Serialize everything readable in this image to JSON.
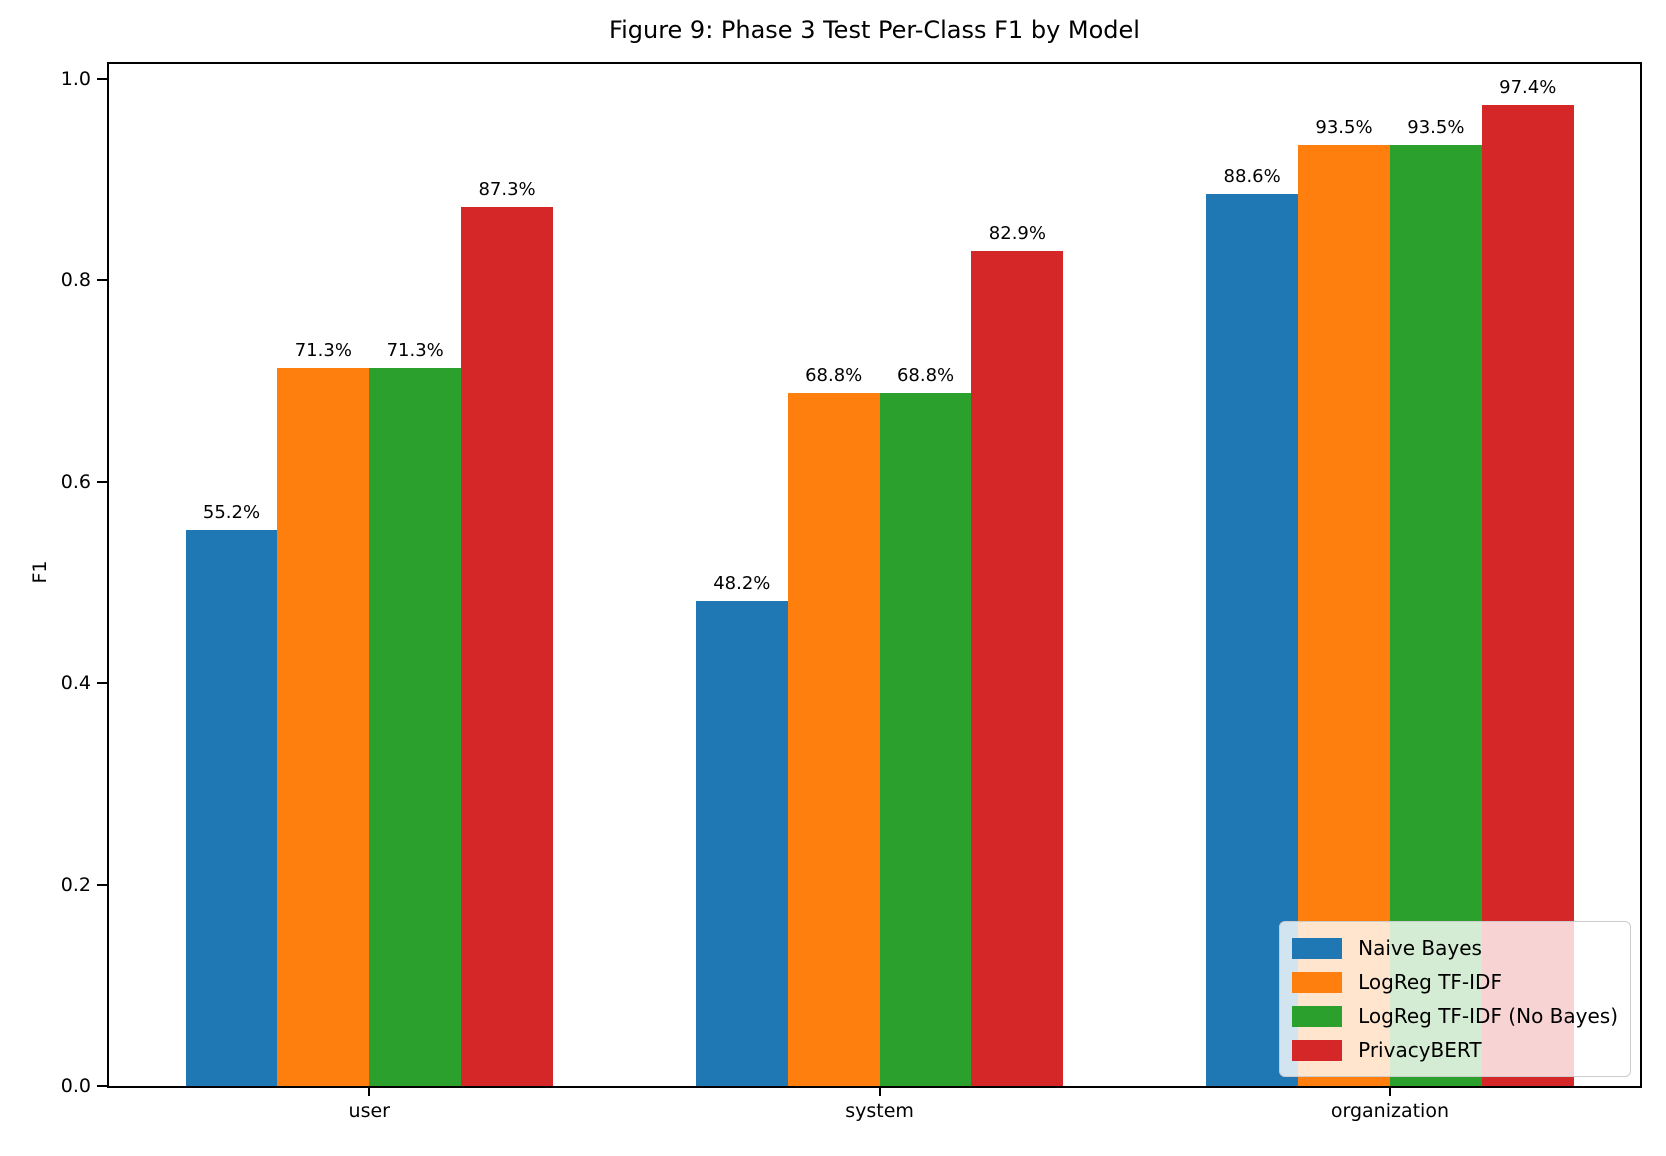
{
  "chart_data": {
    "type": "bar",
    "title": "Figure 9: Phase 3 Test Per-Class F1 by Model",
    "xlabel": "",
    "ylabel": "F1",
    "categories": [
      "user",
      "system",
      "organization"
    ],
    "series": [
      {
        "name": "Naive Bayes",
        "color": "#1f77b4",
        "values": [
          0.552,
          0.482,
          0.886
        ],
        "labels": [
          "55.2%",
          "48.2%",
          "88.6%"
        ]
      },
      {
        "name": "LogReg TF-IDF",
        "color": "#ff7f0e",
        "values": [
          0.713,
          0.688,
          0.935
        ],
        "labels": [
          "71.3%",
          "68.8%",
          "93.5%"
        ]
      },
      {
        "name": "LogReg TF-IDF (No Bayes)",
        "color": "#2ca02c",
        "values": [
          0.713,
          0.688,
          0.935
        ],
        "labels": [
          "71.3%",
          "68.8%",
          "93.5%"
        ]
      },
      {
        "name": "PrivacyBERT",
        "color": "#d62728",
        "values": [
          0.873,
          0.829,
          0.974
        ],
        "labels": [
          "87.3%",
          "82.9%",
          "97.4%"
        ]
      }
    ],
    "yticks": [
      0.0,
      0.2,
      0.4,
      0.6,
      0.8,
      1.0
    ],
    "ytick_labels": [
      "0.0",
      "0.2",
      "0.4",
      "0.6",
      "0.8",
      "1.0"
    ],
    "ylim": [
      0,
      1.015
    ],
    "grid": false,
    "legend_position": "lower right"
  }
}
